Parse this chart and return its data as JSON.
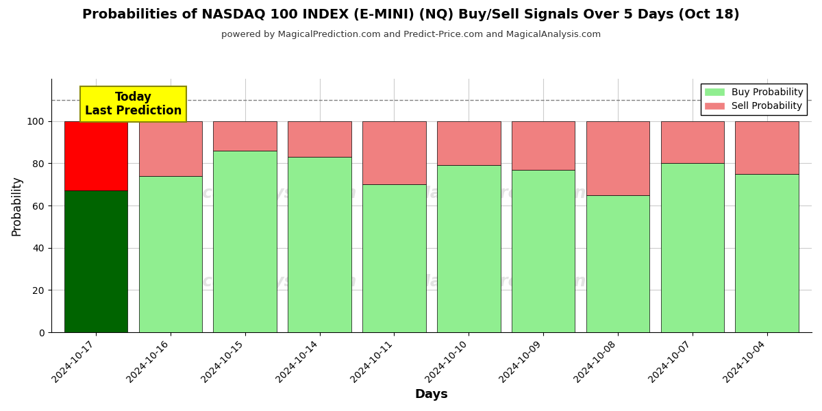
{
  "title": "Probabilities of NASDAQ 100 INDEX (E-MINI) (NQ) Buy/Sell Signals Over 5 Days (Oct 18)",
  "subtitle": "powered by MagicalPrediction.com and Predict-Price.com and MagicalAnalysis.com",
  "xlabel": "Days",
  "ylabel": "Probability",
  "dates": [
    "2024-10-17",
    "2024-10-16",
    "2024-10-15",
    "2024-10-14",
    "2024-10-11",
    "2024-10-10",
    "2024-10-09",
    "2024-10-08",
    "2024-10-07",
    "2024-10-04"
  ],
  "buy_values": [
    67,
    74,
    86,
    83,
    70,
    79,
    77,
    65,
    80,
    75
  ],
  "sell_values": [
    33,
    26,
    14,
    17,
    30,
    21,
    23,
    35,
    20,
    25
  ],
  "today_bar_buy_color": "#006400",
  "today_bar_sell_color": "#FF0000",
  "other_bar_buy_color": "#90EE90",
  "other_bar_sell_color": "#F08080",
  "bar_edge_color": "#000000",
  "ylim": [
    0,
    120
  ],
  "yticks": [
    0,
    20,
    40,
    60,
    80,
    100
  ],
  "dashed_line_y": 110,
  "legend_buy_label": "Buy Probability",
  "legend_sell_label": "Sell Probability",
  "today_annotation": "Today\nLast Prediction",
  "watermark_texts": [
    "MagicalAnalysis.com",
    "MagicalPrediction.com"
  ],
  "background_color": "#ffffff",
  "grid_color": "#cccccc",
  "bar_width": 0.85
}
